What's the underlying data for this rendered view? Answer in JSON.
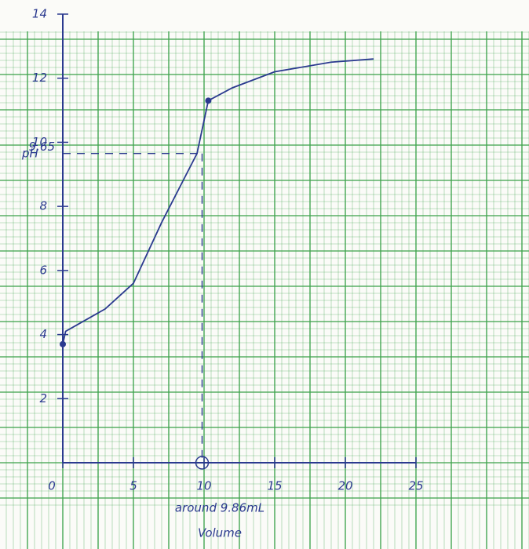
{
  "chart_data": {
    "type": "line",
    "x": [
      0,
      0.2,
      1,
      3,
      5,
      7,
      9.5,
      10.3,
      12,
      15,
      19,
      22
    ],
    "series": [
      {
        "color": "#2b3a8f",
        "values": [
          3.7,
          4.1,
          4.3,
          4.8,
          5.6,
          7.5,
          9.65,
          11.3,
          11.7,
          12.2,
          12.5,
          12.6
        ]
      }
    ],
    "xlim": [
      0,
      25
    ],
    "xticks": [
      0,
      5,
      10,
      15,
      20,
      25
    ],
    "ylim": [
      0,
      14
    ],
    "yticks": [
      2,
      4,
      6,
      8,
      10,
      12,
      14
    ],
    "y_label": "pH",
    "x_label": "Volume",
    "marker_y": 9.65,
    "marker_x": 9.86,
    "annotation": "around 9.86mL"
  }
}
